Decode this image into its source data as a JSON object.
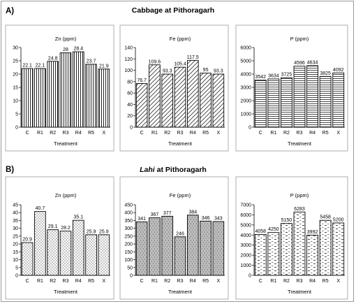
{
  "panels": [
    {
      "letter": "A)",
      "title_italic": "",
      "title_rest": "Cabbage at Pithoragarh"
    },
    {
      "letter": "B)",
      "title_italic": "Lahi",
      "title_rest": " at Pithoragarh"
    }
  ],
  "chart_data": [
    {
      "type": "bar",
      "title": "Zn (ppm)",
      "xlabel": "Treatment",
      "ylabel": "",
      "categories": [
        "C",
        "R1",
        "R2",
        "R3",
        "R4",
        "R5",
        "X"
      ],
      "values": [
        22.1,
        22.1,
        24.8,
        28,
        28.4,
        23.7,
        21.9
      ],
      "ylim": [
        0,
        30
      ],
      "yticks": [
        0,
        5,
        10,
        15,
        20,
        25,
        30
      ],
      "pattern": "vlines",
      "grid": false
    },
    {
      "type": "bar",
      "title": "Fe (ppm)",
      "xlabel": "Treatment",
      "ylabel": "",
      "categories": [
        "C",
        "R1",
        "R2",
        "R3",
        "R4",
        "R5",
        "X"
      ],
      "values": [
        76.7,
        109.6,
        93.3,
        105.4,
        117.5,
        95,
        93.3
      ],
      "ylim": [
        0,
        140
      ],
      "yticks": [
        0,
        20,
        40,
        60,
        80,
        100,
        120,
        140
      ],
      "pattern": "diag",
      "grid": false
    },
    {
      "type": "bar",
      "title": "P (ppm)",
      "xlabel": "Treatment",
      "ylabel": "",
      "categories": [
        "C",
        "R1",
        "R2",
        "R3",
        "R4",
        "R5",
        "X"
      ],
      "values": [
        3542,
        3634,
        3725,
        4596,
        4634,
        3825,
        4092
      ],
      "ylim": [
        0,
        6000
      ],
      "yticks": [
        0,
        1000,
        2000,
        3000,
        4000,
        5000,
        6000
      ],
      "pattern": "hlines",
      "grid": false
    },
    {
      "type": "bar",
      "title": "Zn (ppm)",
      "xlabel": "Treatment",
      "ylabel": "",
      "categories": [
        "C",
        "R1",
        "R2",
        "R3",
        "R4",
        "R5",
        "X"
      ],
      "values": [
        20.9,
        40.7,
        29.1,
        28.2,
        35.1,
        25.9,
        25.9
      ],
      "ylim": [
        0,
        45
      ],
      "yticks": [
        0,
        5,
        10,
        15,
        20,
        25,
        30,
        35,
        40,
        45
      ],
      "pattern": "dots",
      "grid": false
    },
    {
      "type": "bar",
      "title": "Fe (ppm)",
      "xlabel": "Treatment",
      "ylabel": "",
      "categories": [
        "C",
        "R1",
        "R2",
        "R3",
        "R4",
        "R5",
        "X"
      ],
      "values": [
        341,
        367,
        377,
        246,
        384,
        346,
        343
      ],
      "ylim": [
        0,
        450
      ],
      "yticks": [
        0,
        50,
        100,
        150,
        200,
        250,
        300,
        350,
        400,
        450
      ],
      "pattern": "gray",
      "grid": false
    },
    {
      "type": "bar",
      "title": "P (ppm)",
      "xlabel": "Treatment",
      "ylabel": "",
      "categories": [
        "C",
        "R1",
        "R2",
        "R3",
        "R4",
        "R5",
        "X"
      ],
      "values": [
        4058,
        4250,
        5150,
        6283,
        3992,
        5458,
        5200
      ],
      "ylim": [
        0,
        7000
      ],
      "yticks": [
        0,
        1000,
        2000,
        3000,
        4000,
        5000,
        6000,
        7000
      ],
      "pattern": "dashes",
      "grid": false
    }
  ]
}
